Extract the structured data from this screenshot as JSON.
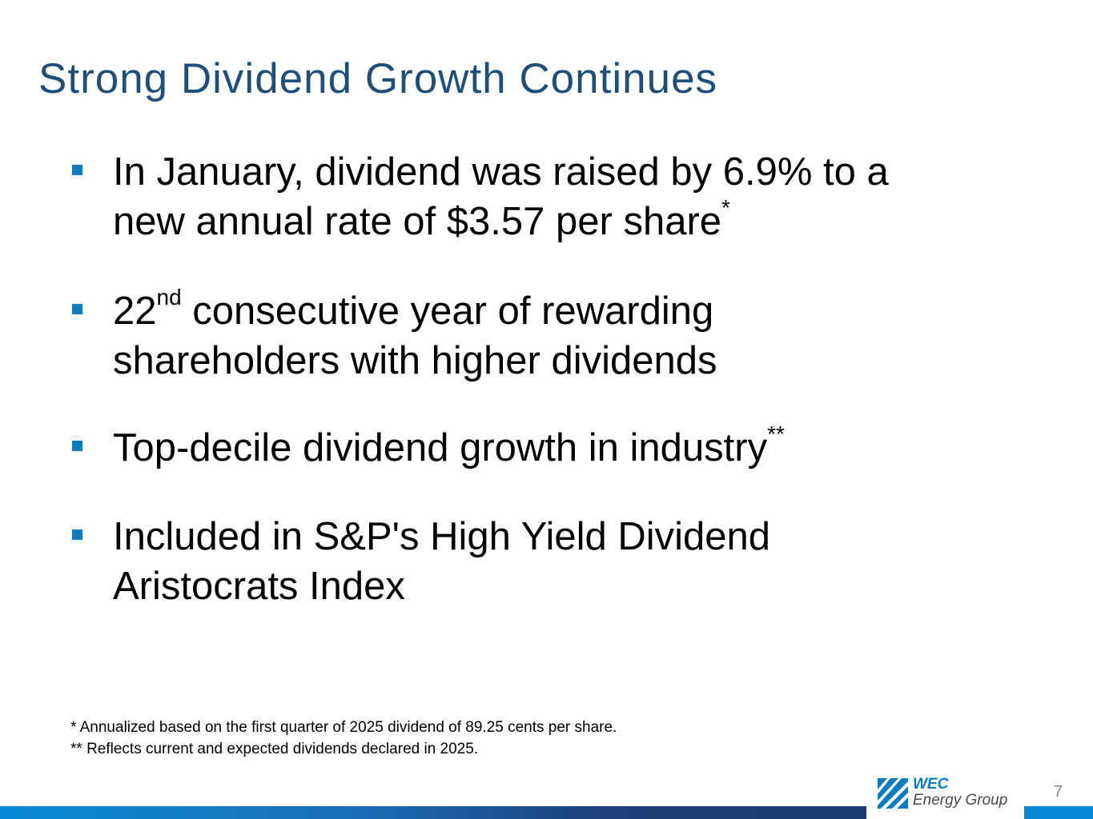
{
  "slide": {
    "title": "Strong Dividend Growth Continues",
    "bullets": [
      {
        "line1": "In January, dividend was raised by 6.9% to a",
        "line2": "new annual rate of $3.57 per share",
        "sup": "*"
      },
      {
        "pre": "22",
        "sup": "nd",
        "line1_rest": " consecutive year of rewarding",
        "line2": "shareholders with higher dividends"
      },
      {
        "line1": "Top-decile dividend growth in industry",
        "sup": "**"
      },
      {
        "line1": "Included in S&P's High Yield Dividend",
        "line2": "Aristocrats Index"
      }
    ],
    "footnotes": [
      "*  Annualized based on the first quarter of 2025 dividend of 89.25 cents per share.",
      "** Reflects current and expected dividends declared in 2025."
    ],
    "logo": {
      "line1": "WEC",
      "line2": "Energy Group"
    },
    "page_number": "7"
  },
  "colors": {
    "title": "#1f4e79",
    "bullet_marker": "#0a7bc1",
    "bar_start": "#0a8ad6",
    "bar_end": "#1d3a72"
  }
}
